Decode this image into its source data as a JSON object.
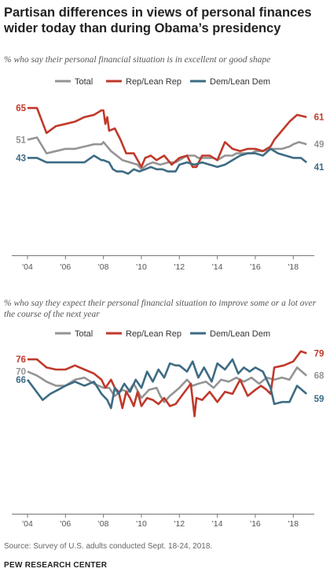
{
  "title": "Partisan differences in views of personal finances wider today than during Obama’s presidency",
  "source": "Source: Survey of U.S. adults conducted Sept. 18-24, 2018.",
  "brand": "PEW RESEARCH CENTER",
  "chart_data": [
    {
      "type": "line",
      "subtitle": "% who say their personal financial situation is in excellent or good shape",
      "x_ticks": [
        "'04",
        "'06",
        "'08",
        "'10",
        "'12",
        "'14",
        "'16",
        "'18"
      ],
      "xlim": [
        2004,
        2018.9
      ],
      "ylim": [
        0,
        80
      ],
      "legend_position": "top",
      "series": [
        {
          "name": "Total",
          "color": "#949494",
          "start_label": "51",
          "end_label": "49",
          "points": [
            [
              2004.0,
              51
            ],
            [
              2004.5,
              52
            ],
            [
              2005.0,
              45
            ],
            [
              2005.5,
              46
            ],
            [
              2006.0,
              47
            ],
            [
              2006.5,
              47
            ],
            [
              2007.0,
              48
            ],
            [
              2007.5,
              49
            ],
            [
              2007.9,
              49
            ],
            [
              2008.0,
              50
            ],
            [
              2008.2,
              48
            ],
            [
              2008.4,
              46
            ],
            [
              2008.7,
              44
            ],
            [
              2009.0,
              42
            ],
            [
              2009.4,
              41
            ],
            [
              2009.8,
              40
            ],
            [
              2010.0,
              38
            ],
            [
              2010.3,
              40
            ],
            [
              2010.6,
              41
            ],
            [
              2011.0,
              40
            ],
            [
              2011.4,
              41
            ],
            [
              2011.8,
              41
            ],
            [
              2012.0,
              42
            ],
            [
              2012.4,
              44
            ],
            [
              2012.8,
              44
            ],
            [
              2013.0,
              43
            ],
            [
              2013.4,
              43
            ],
            [
              2013.8,
              43
            ],
            [
              2014.0,
              42
            ],
            [
              2014.4,
              44
            ],
            [
              2014.8,
              44
            ],
            [
              2015.0,
              45
            ],
            [
              2015.4,
              45
            ],
            [
              2015.8,
              45
            ],
            [
              2016.0,
              46
            ],
            [
              2016.4,
              46
            ],
            [
              2016.8,
              47
            ],
            [
              2017.0,
              47
            ],
            [
              2017.4,
              47
            ],
            [
              2017.8,
              48
            ],
            [
              2018.0,
              49
            ],
            [
              2018.3,
              50
            ],
            [
              2018.7,
              49
            ]
          ]
        },
        {
          "name": "Rep/Lean Rep",
          "color": "#C0392B",
          "start_label": "65",
          "end_label": "61",
          "points": [
            [
              2004.0,
              65
            ],
            [
              2004.5,
              65
            ],
            [
              2005.0,
              54
            ],
            [
              2005.5,
              57
            ],
            [
              2006.0,
              58
            ],
            [
              2006.5,
              59
            ],
            [
              2007.0,
              61
            ],
            [
              2007.5,
              62
            ],
            [
              2007.9,
              64
            ],
            [
              2008.0,
              64
            ],
            [
              2008.1,
              58
            ],
            [
              2008.2,
              61
            ],
            [
              2008.3,
              55
            ],
            [
              2008.6,
              56
            ],
            [
              2008.9,
              51
            ],
            [
              2009.2,
              45
            ],
            [
              2009.6,
              45
            ],
            [
              2010.0,
              39
            ],
            [
              2010.2,
              43
            ],
            [
              2010.5,
              44
            ],
            [
              2010.8,
              42
            ],
            [
              2011.2,
              44
            ],
            [
              2011.6,
              40
            ],
            [
              2012.0,
              43
            ],
            [
              2012.4,
              44
            ],
            [
              2012.7,
              39
            ],
            [
              2012.9,
              39
            ],
            [
              2013.2,
              44
            ],
            [
              2013.6,
              44
            ],
            [
              2014.0,
              42
            ],
            [
              2014.4,
              50
            ],
            [
              2014.8,
              47
            ],
            [
              2015.2,
              46
            ],
            [
              2015.6,
              47
            ],
            [
              2016.0,
              47
            ],
            [
              2016.4,
              46
            ],
            [
              2016.8,
              48
            ],
            [
              2017.0,
              51
            ],
            [
              2017.4,
              55
            ],
            [
              2017.8,
              59
            ],
            [
              2018.2,
              62
            ],
            [
              2018.7,
              61
            ]
          ]
        },
        {
          "name": "Dem/Lean Dem",
          "color": "#3D6B84",
          "start_label": "43",
          "end_label": "41",
          "points": [
            [
              2004.0,
              43
            ],
            [
              2004.5,
              43
            ],
            [
              2005.0,
              41
            ],
            [
              2005.5,
              41
            ],
            [
              2006.0,
              41
            ],
            [
              2006.5,
              41
            ],
            [
              2007.0,
              41
            ],
            [
              2007.5,
              44
            ],
            [
              2007.9,
              42
            ],
            [
              2008.0,
              42
            ],
            [
              2008.3,
              41
            ],
            [
              2008.5,
              38
            ],
            [
              2008.7,
              37
            ],
            [
              2009.0,
              37
            ],
            [
              2009.3,
              36
            ],
            [
              2009.6,
              38
            ],
            [
              2009.9,
              37
            ],
            [
              2010.2,
              38
            ],
            [
              2010.5,
              39
            ],
            [
              2010.8,
              38
            ],
            [
              2011.1,
              38
            ],
            [
              2011.4,
              37
            ],
            [
              2011.8,
              37
            ],
            [
              2012.0,
              40
            ],
            [
              2012.4,
              41
            ],
            [
              2012.8,
              40
            ],
            [
              2013.2,
              41
            ],
            [
              2013.6,
              40
            ],
            [
              2014.0,
              39
            ],
            [
              2014.4,
              40
            ],
            [
              2014.8,
              42
            ],
            [
              2015.2,
              44
            ],
            [
              2015.6,
              45
            ],
            [
              2016.0,
              45
            ],
            [
              2016.4,
              44
            ],
            [
              2016.8,
              47
            ],
            [
              2017.2,
              45
            ],
            [
              2017.6,
              44
            ],
            [
              2018.0,
              43
            ],
            [
              2018.4,
              43
            ],
            [
              2018.7,
              41
            ]
          ]
        }
      ]
    },
    {
      "type": "line",
      "subtitle": "% who say they expect their personal financial situation to improve some or a lot over the course of the next year",
      "x_ticks": [
        "'04",
        "'06",
        "'08",
        "'10",
        "'12",
        "'14",
        "'16",
        "'18"
      ],
      "xlim": [
        2004,
        2018.9
      ],
      "ylim": [
        0,
        90
      ],
      "legend_position": "top",
      "series": [
        {
          "name": "Total",
          "color": "#949494",
          "start_label": "70",
          "end_label": "68",
          "points": [
            [
              2004.0,
              70
            ],
            [
              2004.5,
              68
            ],
            [
              2005.0,
              65
            ],
            [
              2005.5,
              63
            ],
            [
              2006.0,
              63
            ],
            [
              2006.5,
              66
            ],
            [
              2007.0,
              67
            ],
            [
              2007.5,
              64
            ],
            [
              2008.0,
              62
            ],
            [
              2008.3,
              62
            ],
            [
              2008.6,
              58
            ],
            [
              2009.0,
              61
            ],
            [
              2009.3,
              60
            ],
            [
              2009.6,
              64
            ],
            [
              2010.0,
              57
            ],
            [
              2010.4,
              61
            ],
            [
              2010.8,
              62
            ],
            [
              2011.0,
              58
            ],
            [
              2011.2,
              55
            ],
            [
              2011.5,
              58
            ],
            [
              2012.0,
              62
            ],
            [
              2012.4,
              66
            ],
            [
              2012.7,
              63
            ],
            [
              2013.0,
              64
            ],
            [
              2013.4,
              65
            ],
            [
              2013.8,
              62
            ],
            [
              2014.2,
              66
            ],
            [
              2014.6,
              65
            ],
            [
              2015.0,
              67
            ],
            [
              2015.4,
              65
            ],
            [
              2015.8,
              67
            ],
            [
              2016.2,
              64
            ],
            [
              2016.6,
              67
            ],
            [
              2017.0,
              66
            ],
            [
              2017.4,
              67
            ],
            [
              2017.8,
              66
            ],
            [
              2018.2,
              72
            ],
            [
              2018.7,
              68
            ]
          ]
        },
        {
          "name": "Rep/Lean Rep",
          "color": "#C0392B",
          "start_label": "76",
          "end_label": "79",
          "points": [
            [
              2004.0,
              76
            ],
            [
              2004.5,
              76
            ],
            [
              2005.0,
              72
            ],
            [
              2005.5,
              71
            ],
            [
              2006.0,
              71
            ],
            [
              2006.5,
              73
            ],
            [
              2007.0,
              71
            ],
            [
              2007.5,
              69
            ],
            [
              2007.9,
              66
            ],
            [
              2008.1,
              62
            ],
            [
              2008.4,
              66
            ],
            [
              2008.6,
              62
            ],
            [
              2008.8,
              60
            ],
            [
              2009.0,
              52
            ],
            [
              2009.2,
              60
            ],
            [
              2009.4,
              57
            ],
            [
              2009.6,
              53
            ],
            [
              2009.8,
              60
            ],
            [
              2010.0,
              53
            ],
            [
              2010.3,
              57
            ],
            [
              2010.6,
              56
            ],
            [
              2010.9,
              54
            ],
            [
              2011.2,
              57
            ],
            [
              2011.5,
              53
            ],
            [
              2011.8,
              54
            ],
            [
              2012.2,
              59
            ],
            [
              2012.6,
              64
            ],
            [
              2012.8,
              48
            ],
            [
              2012.9,
              57
            ],
            [
              2013.2,
              56
            ],
            [
              2013.6,
              60
            ],
            [
              2014.0,
              55
            ],
            [
              2014.4,
              60
            ],
            [
              2014.8,
              59
            ],
            [
              2015.2,
              66
            ],
            [
              2015.6,
              58
            ],
            [
              2016.0,
              61
            ],
            [
              2016.3,
              63
            ],
            [
              2016.6,
              61
            ],
            [
              2016.8,
              59
            ],
            [
              2017.0,
              72
            ],
            [
              2017.5,
              73
            ],
            [
              2018.0,
              75
            ],
            [
              2018.4,
              80
            ],
            [
              2018.7,
              79
            ]
          ]
        },
        {
          "name": "Dem/Lean Dem",
          "color": "#3D6B84",
          "start_label": "66",
          "end_label": "59",
          "points": [
            [
              2004.0,
              66
            ],
            [
              2004.4,
              61
            ],
            [
              2004.8,
              56
            ],
            [
              2005.2,
              59
            ],
            [
              2005.6,
              61
            ],
            [
              2006.0,
              63
            ],
            [
              2006.5,
              65
            ],
            [
              2007.0,
              63
            ],
            [
              2007.5,
              65
            ],
            [
              2007.9,
              59
            ],
            [
              2008.2,
              56
            ],
            [
              2008.4,
              52
            ],
            [
              2008.6,
              62
            ],
            [
              2008.8,
              59
            ],
            [
              2009.1,
              64
            ],
            [
              2009.4,
              60
            ],
            [
              2009.7,
              66
            ],
            [
              2010.0,
              62
            ],
            [
              2010.3,
              70
            ],
            [
              2010.6,
              65
            ],
            [
              2010.9,
              71
            ],
            [
              2011.2,
              67
            ],
            [
              2011.5,
              74
            ],
            [
              2011.8,
              73
            ],
            [
              2012.0,
              73
            ],
            [
              2012.4,
              70
            ],
            [
              2012.7,
              75
            ],
            [
              2013.0,
              67
            ],
            [
              2013.3,
              72
            ],
            [
              2013.7,
              65
            ],
            [
              2014.0,
              74
            ],
            [
              2014.4,
              71
            ],
            [
              2014.8,
              76
            ],
            [
              2015.1,
              69
            ],
            [
              2015.4,
              72
            ],
            [
              2015.7,
              70
            ],
            [
              2016.0,
              72
            ],
            [
              2016.4,
              70
            ],
            [
              2016.8,
              62
            ],
            [
              2017.0,
              54
            ],
            [
              2017.4,
              55
            ],
            [
              2017.8,
              55
            ],
            [
              2018.2,
              63
            ],
            [
              2018.7,
              59
            ]
          ]
        }
      ]
    }
  ]
}
